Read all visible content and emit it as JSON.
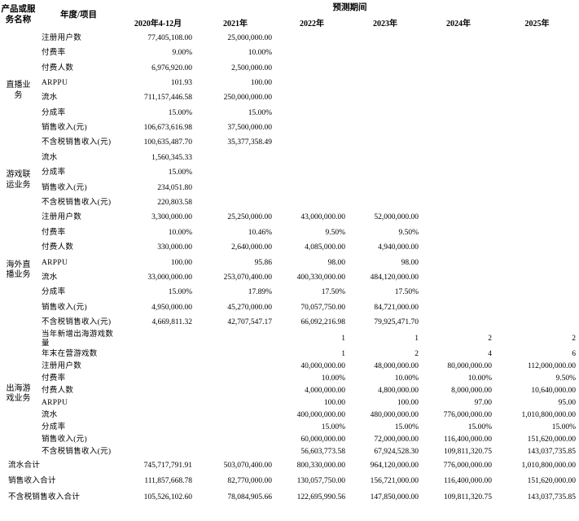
{
  "table": {
    "col1_header": "产品或服务名称",
    "col2_header": "年度/项目",
    "span_header": "预测期间",
    "periods": [
      "2020年4-12月",
      "2021年",
      "2022年",
      "2023年",
      "2024年",
      "2025年"
    ],
    "groups": [
      {
        "name": "直播业务",
        "rows": [
          {
            "label": "注册用户数",
            "values": [
              "77,405,108.00",
              "25,000,000.00",
              "",
              "",
              "",
              ""
            ]
          },
          {
            "label": "付费率",
            "values": [
              "9.00%",
              "10.00%",
              "",
              "",
              "",
              ""
            ]
          },
          {
            "label": "付费人数",
            "values": [
              "6,976,920.00",
              "2,500,000.00",
              "",
              "",
              "",
              ""
            ]
          },
          {
            "label": "ARPPU",
            "values": [
              "101.93",
              "100.00",
              "",
              "",
              "",
              ""
            ]
          },
          {
            "label": "流水",
            "values": [
              "711,157,446.58",
              "250,000,000.00",
              "",
              "",
              "",
              ""
            ]
          },
          {
            "label": "分成率",
            "values": [
              "15.00%",
              "15.00%",
              "",
              "",
              "",
              ""
            ]
          },
          {
            "label": "销售收入(元)",
            "values": [
              "106,673,616.98",
              "37,500,000.00",
              "",
              "",
              "",
              ""
            ]
          },
          {
            "label": "不含税销售收入(元)",
            "values": [
              "100,635,487.70",
              "35,377,358.49",
              "",
              "",
              "",
              ""
            ]
          }
        ]
      },
      {
        "name": "游戏联运业务",
        "rows": [
          {
            "label": "流水",
            "values": [
              "1,560,345.33",
              "",
              "",
              "",
              "",
              ""
            ]
          },
          {
            "label": "分成率",
            "values": [
              "15.00%",
              "",
              "",
              "",
              "",
              ""
            ]
          },
          {
            "label": "销售收入(元)",
            "values": [
              "234,051.80",
              "",
              "",
              "",
              "",
              ""
            ]
          },
          {
            "label": "不含税销售收入(元)",
            "values": [
              "220,803.58",
              "",
              "",
              "",
              "",
              ""
            ]
          }
        ]
      },
      {
        "name": "海外直播业务",
        "rows": [
          {
            "label": "注册用户数",
            "values": [
              "3,300,000.00",
              "25,250,000.00",
              "43,000,000.00",
              "52,000,000.00",
              "",
              ""
            ]
          },
          {
            "label": "付费率",
            "values": [
              "10.00%",
              "10.46%",
              "9.50%",
              "9.50%",
              "",
              ""
            ]
          },
          {
            "label": "付费人数",
            "values": [
              "330,000.00",
              "2,640,000.00",
              "4,085,000.00",
              "4,940,000.00",
              "",
              ""
            ]
          },
          {
            "label": "ARPPU",
            "values": [
              "100.00",
              "95.86",
              "98.00",
              "98.00",
              "",
              ""
            ]
          },
          {
            "label": "流水",
            "values": [
              "33,000,000.00",
              "253,070,400.00",
              "400,330,000.00",
              "484,120,000.00",
              "",
              ""
            ]
          },
          {
            "label": "分成率",
            "values": [
              "15.00%",
              "17.89%",
              "17.50%",
              "17.50%",
              "",
              ""
            ]
          },
          {
            "label": "销售收入(元)",
            "values": [
              "4,950,000.00",
              "45,270,000.00",
              "70,057,750.00",
              "84,721,000.00",
              "",
              ""
            ]
          },
          {
            "label": "不含税销售收入(元)",
            "values": [
              "4,669,811.32",
              "42,707,547.17",
              "66,092,216.98",
              "79,925,471.70",
              "",
              ""
            ]
          }
        ]
      },
      {
        "name": "出海游戏业务",
        "rows": [
          {
            "label": "当年新增出海游戏数量",
            "values": [
              "",
              "",
              "1",
              "1",
              "2",
              "2"
            ]
          },
          {
            "label": "年末在营游戏数",
            "values": [
              "",
              "",
              "1",
              "2",
              "4",
              "6"
            ]
          },
          {
            "label": "注册用户数",
            "values": [
              "",
              "",
              "40,000,000.00",
              "48,000,000.00",
              "80,000,000.00",
              "112,000,000.00"
            ]
          },
          {
            "label": "付费率",
            "values": [
              "",
              "",
              "10.00%",
              "10.00%",
              "10.00%",
              "9.50%"
            ]
          },
          {
            "label": "付费人数",
            "values": [
              "",
              "",
              "4,000,000.00",
              "4,800,000.00",
              "8,000,000.00",
              "10,640,000.00"
            ]
          },
          {
            "label": "ARPPU",
            "values": [
              "",
              "",
              "100.00",
              "100.00",
              "97.00",
              "95.00"
            ]
          },
          {
            "label": "流水",
            "values": [
              "",
              "",
              "400,000,000.00",
              "480,000,000.00",
              "776,000,000.00",
              "1,010,800,000.00"
            ]
          },
          {
            "label": "分成率",
            "values": [
              "",
              "",
              "15.00%",
              "15.00%",
              "15.00%",
              "15.00%"
            ]
          },
          {
            "label": "销售收入(元)",
            "values": [
              "",
              "",
              "60,000,000.00",
              "72,000,000.00",
              "116,400,000.00",
              "151,620,000.00"
            ]
          },
          {
            "label": "不含税销售收入(元)",
            "values": [
              "",
              "",
              "56,603,773.58",
              "67,924,528.30",
              "109,811,320.75",
              "143,037,735.85"
            ]
          }
        ]
      }
    ],
    "totals": [
      {
        "label": "流水合计",
        "values": [
          "745,717,791.91",
          "503,070,400.00",
          "800,330,000.00",
          "964,120,000.00",
          "776,000,000.00",
          "1,010,800,000.00"
        ]
      },
      {
        "label": "销售收入合计",
        "values": [
          "111,857,668.78",
          "82,770,000.00",
          "130,057,750.00",
          "156,721,000.00",
          "116,400,000.00",
          "151,620,000.00"
        ]
      },
      {
        "label": "不含税销售收入合计",
        "values": [
          "105,526,102.60",
          "78,084,905.66",
          "122,695,990.56",
          "147,850,000.00",
          "109,811,320.75",
          "143,037,735.85"
        ]
      }
    ]
  }
}
